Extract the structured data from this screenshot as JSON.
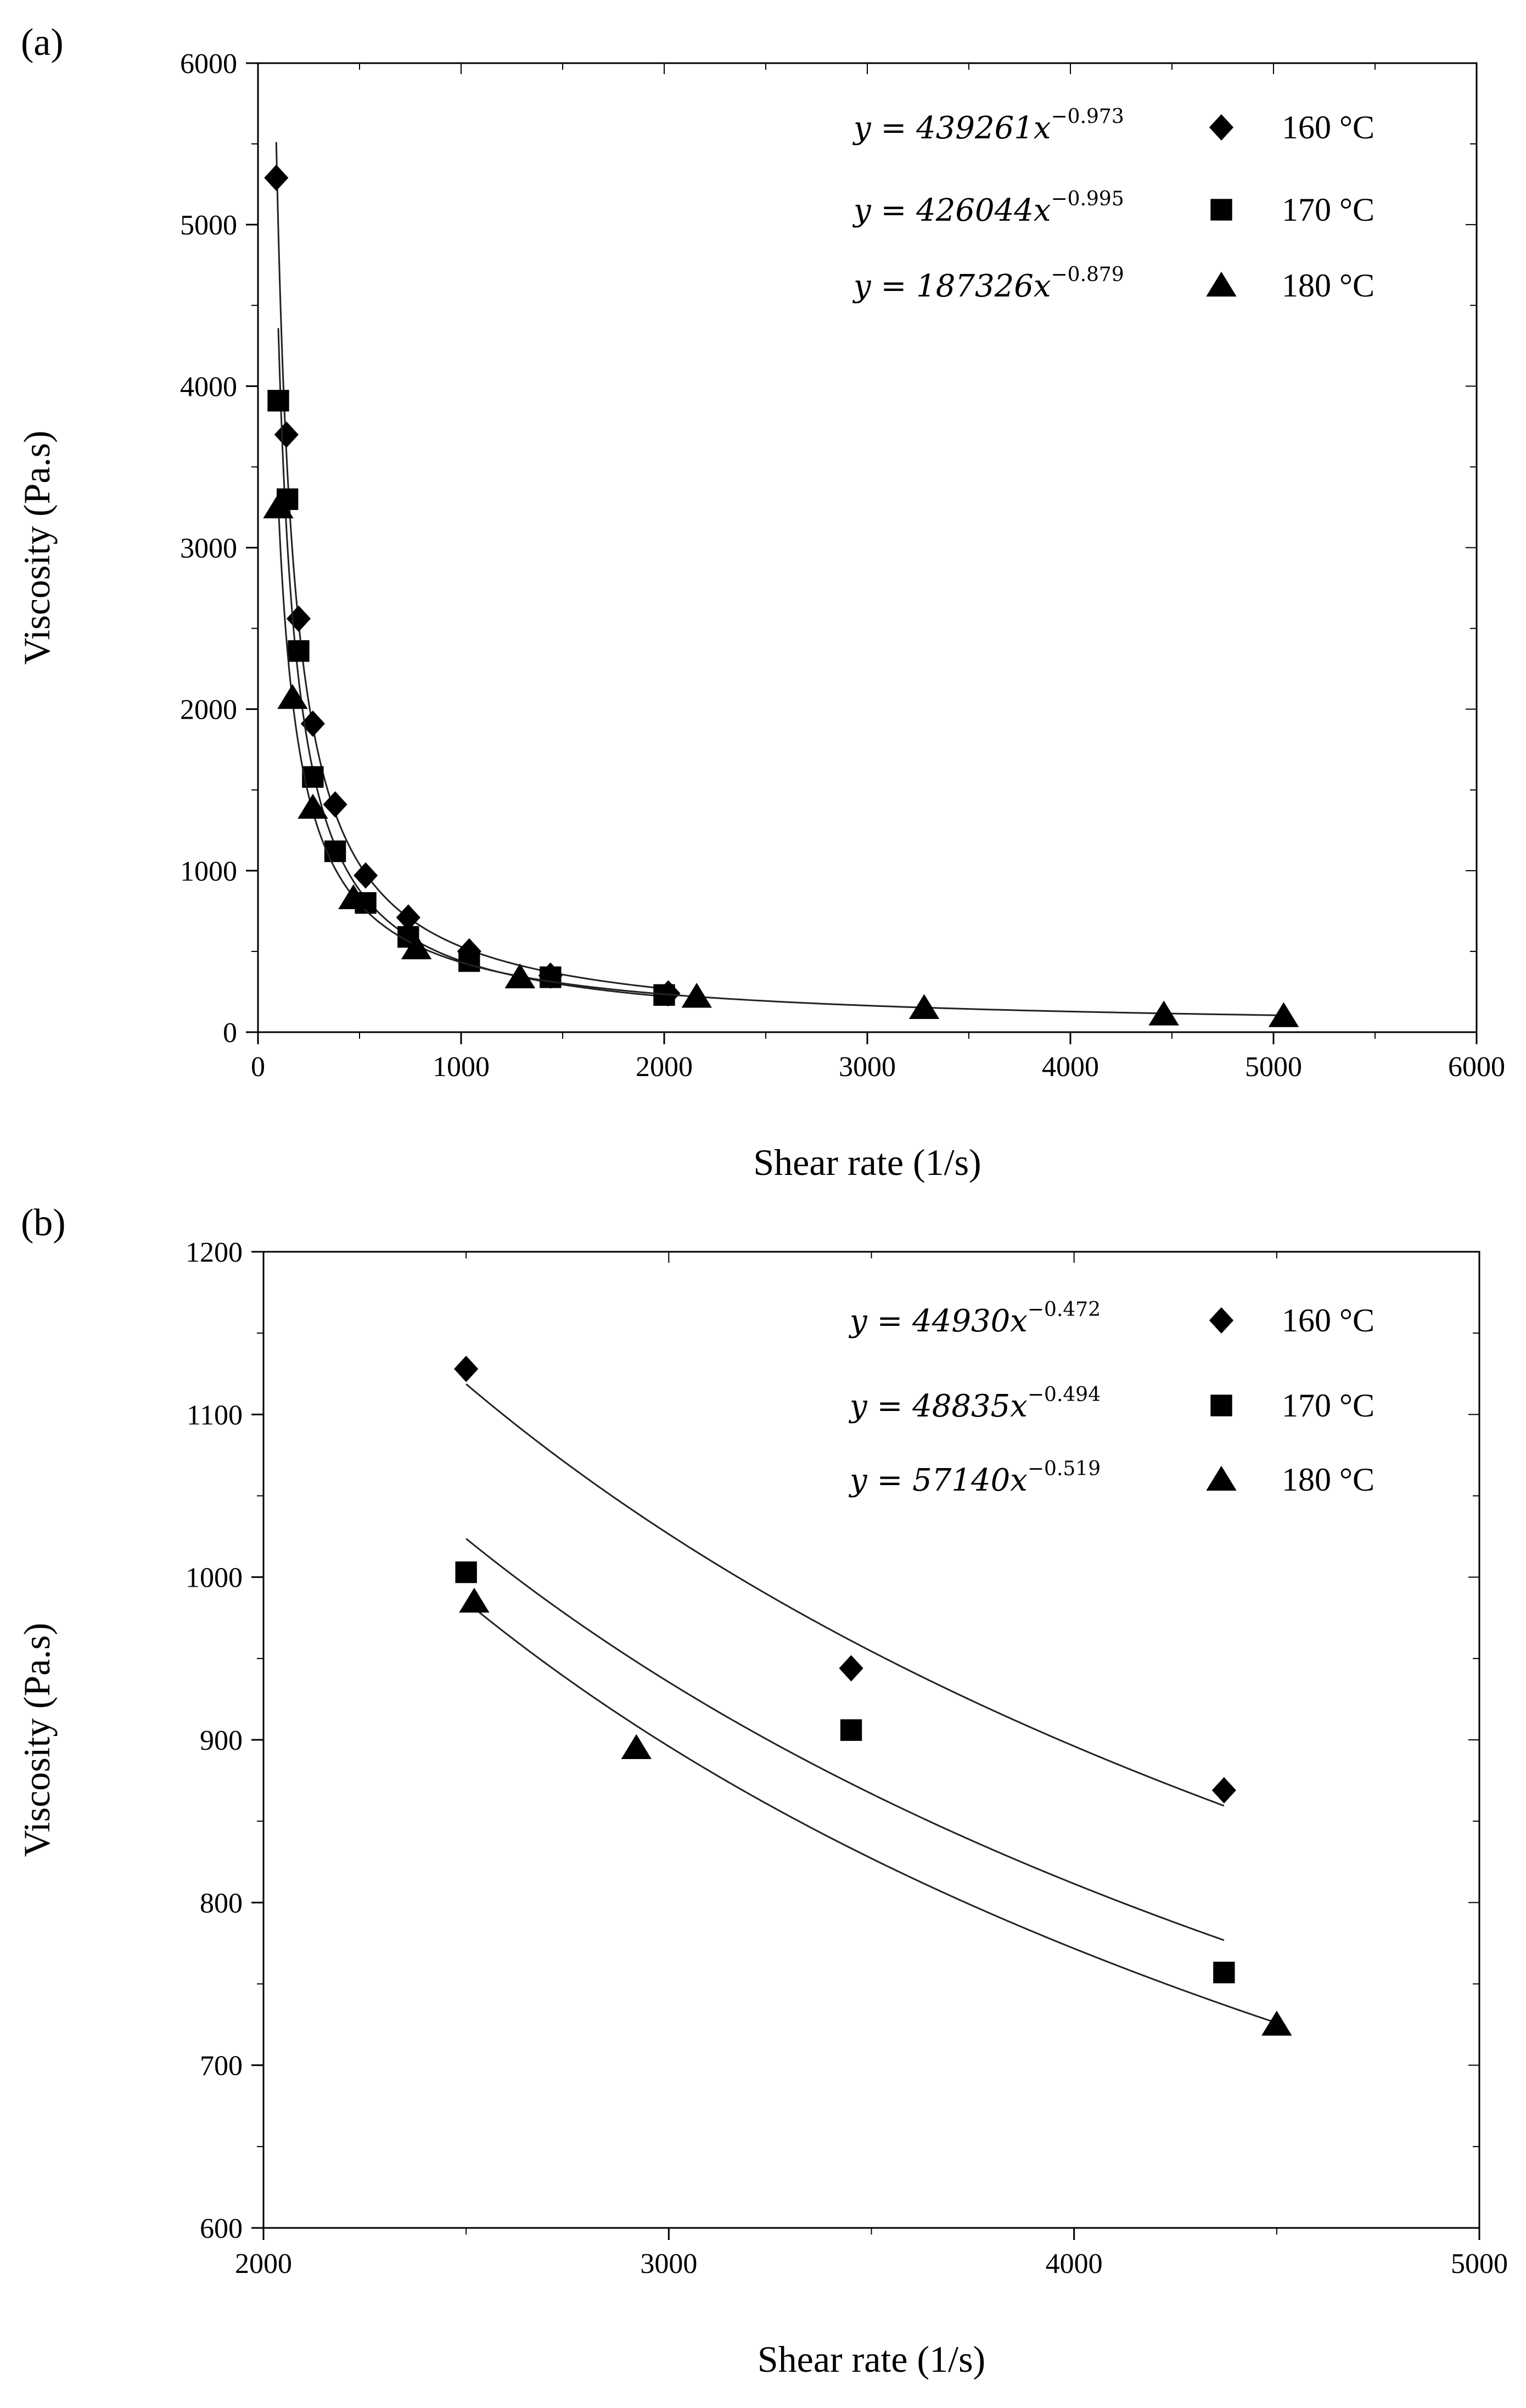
{
  "chart_data": [
    {
      "type": "scatter",
      "panel_label": "(a)",
      "xlabel": "Shear rate (1/s)",
      "ylabel": "Viscosity (Pa.s)",
      "xlim": [
        0,
        6000
      ],
      "ylim": [
        0,
        6000
      ],
      "xticks": [
        0,
        1000,
        2000,
        3000,
        4000,
        5000,
        6000
      ],
      "yticks": [
        0,
        1000,
        2000,
        3000,
        4000,
        5000,
        6000
      ],
      "x_tick_labels": [
        "0",
        "1000",
        "2000",
        "3000",
        "4000",
        "5000",
        "6000"
      ],
      "y_tick_labels": [
        "0",
        "1000",
        "2000",
        "3000",
        "4000",
        "5000",
        "6000"
      ],
      "legend_position": "top-right",
      "series": [
        {
          "name": "160 °C",
          "marker": "diamond",
          "fit": {
            "a": 439261,
            "b": -0.973,
            "x_from": 90,
            "x_to": 2000
          },
          "equation": {
            "lhs": "y = 439261x",
            "exp": "−0.973"
          },
          "points": [
            [
              90,
              5290
            ],
            [
              140,
              3700
            ],
            [
              200,
              2560
            ],
            [
              270,
              1910
            ],
            [
              380,
              1410
            ],
            [
              530,
              970
            ],
            [
              740,
              710
            ],
            [
              1040,
              500
            ],
            [
              1440,
              350
            ],
            [
              2020,
              240
            ]
          ]
        },
        {
          "name": "170 °C",
          "marker": "square",
          "fit": {
            "a": 426044,
            "b": -0.995,
            "x_from": 100,
            "x_to": 2000
          },
          "equation": {
            "lhs": "y = 426044x",
            "exp": "−0.995"
          },
          "points": [
            [
              100,
              3910
            ],
            [
              145,
              3300
            ],
            [
              200,
              2360
            ],
            [
              270,
              1580
            ],
            [
              380,
              1120
            ],
            [
              530,
              800
            ],
            [
              740,
              590
            ],
            [
              1040,
              440
            ],
            [
              1440,
              340
            ],
            [
              2000,
              230
            ]
          ]
        },
        {
          "name": "180 °C",
          "marker": "triangle",
          "fit": {
            "a": 187326,
            "b": -0.879,
            "x_from": 100,
            "x_to": 5050
          },
          "equation": {
            "lhs": "y = 187326x",
            "exp": "−0.879"
          },
          "points": [
            [
              100,
              3250
            ],
            [
              170,
              2070
            ],
            [
              270,
              1390
            ],
            [
              470,
              830
            ],
            [
              780,
              520
            ],
            [
              1290,
              340
            ],
            [
              2160,
              220
            ],
            [
              3280,
              150
            ],
            [
              4460,
              110
            ],
            [
              5050,
              100
            ]
          ]
        }
      ]
    },
    {
      "type": "scatter",
      "panel_label": "(b)",
      "xlabel": "Shear rate (1/s)",
      "ylabel": "Viscosity (Pa.s)",
      "xlim": [
        2000,
        5000
      ],
      "ylim": [
        600,
        1200
      ],
      "xticks": [
        2000,
        3000,
        4000,
        5000
      ],
      "yticks": [
        600,
        700,
        800,
        900,
        1000,
        1100,
        1200
      ],
      "x_tick_labels": [
        "2000",
        "3000",
        "4000",
        "5000"
      ],
      "y_tick_labels": [
        "600",
        "700",
        "800",
        "900",
        "1000",
        "1100",
        "1200"
      ],
      "legend_position": "top-right",
      "series": [
        {
          "name": "160 °C",
          "marker": "diamond",
          "fit": {
            "a": 44930,
            "b": -0.472,
            "x_from": 2500,
            "x_to": 4370
          },
          "equation": {
            "lhs": "y = 44930x",
            "exp": "−0.472"
          },
          "points": [
            [
              2500,
              1128
            ],
            [
              3450,
              944
            ],
            [
              4370,
              869
            ]
          ]
        },
        {
          "name": "170 °C",
          "marker": "square",
          "fit": {
            "a": 48835,
            "b": -0.494,
            "x_from": 2500,
            "x_to": 4370
          },
          "equation": {
            "lhs": "y = 48835x",
            "exp": "−0.494"
          },
          "points": [
            [
              2500,
              1003
            ],
            [
              3450,
              906
            ],
            [
              4370,
              757
            ]
          ]
        },
        {
          "name": "180 °C",
          "marker": "triangle",
          "fit": {
            "a": 57140,
            "b": -0.519,
            "x_from": 2500,
            "x_to": 4500
          },
          "equation": {
            "lhs": "y = 57140x",
            "exp": "−0.519"
          },
          "points": [
            [
              2520,
              985
            ],
            [
              2920,
              895
            ],
            [
              4500,
              725
            ]
          ]
        }
      ]
    }
  ]
}
